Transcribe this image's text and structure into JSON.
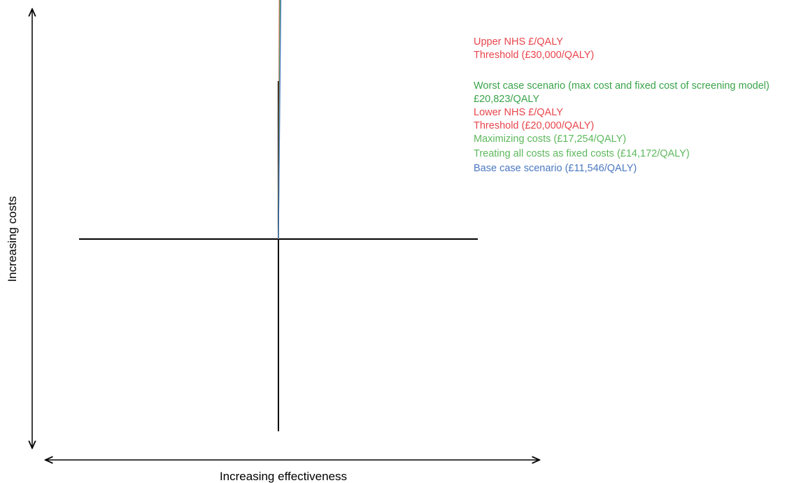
{
  "chart_data": {
    "type": "line",
    "title": "",
    "xlabel": "Increasing effectiveness",
    "ylabel": "Increasing costs",
    "x_unit": "QALY",
    "y_unit": "£",
    "grid": false,
    "series": [
      {
        "key": "upper_threshold",
        "label_lines": [
          "Upper NHS £/QALY",
          "Threshold (£30,000/QALY)"
        ],
        "ratio": 30000,
        "color": "#e8454c"
      },
      {
        "key": "worst_case",
        "label_lines": [
          "Worst case scenario (max cost and fixed cost of screening model)",
          "£20,823/QALY"
        ],
        "ratio": 20823,
        "color": "#3aa44a"
      },
      {
        "key": "lower_threshold",
        "label_lines": [
          "Lower NHS £/QALY",
          "Threshold (£20,000/QALY)"
        ],
        "ratio": 20000,
        "color": "#e8454c"
      },
      {
        "key": "maximizing_costs",
        "label_lines": [
          "Maximizing costs (£17,254/QALY)"
        ],
        "ratio": 17254,
        "color": "#5cb85c"
      },
      {
        "key": "fixed_costs",
        "label_lines": [
          "Treating all costs as fixed costs (£14,172/QALY)"
        ],
        "ratio": 14172,
        "color": "#5cb85c"
      },
      {
        "key": "base_case",
        "label_lines": [
          "Base case scenario (£11,546/QALY)"
        ],
        "ratio": 11546,
        "color": "#4a78c2"
      }
    ]
  }
}
